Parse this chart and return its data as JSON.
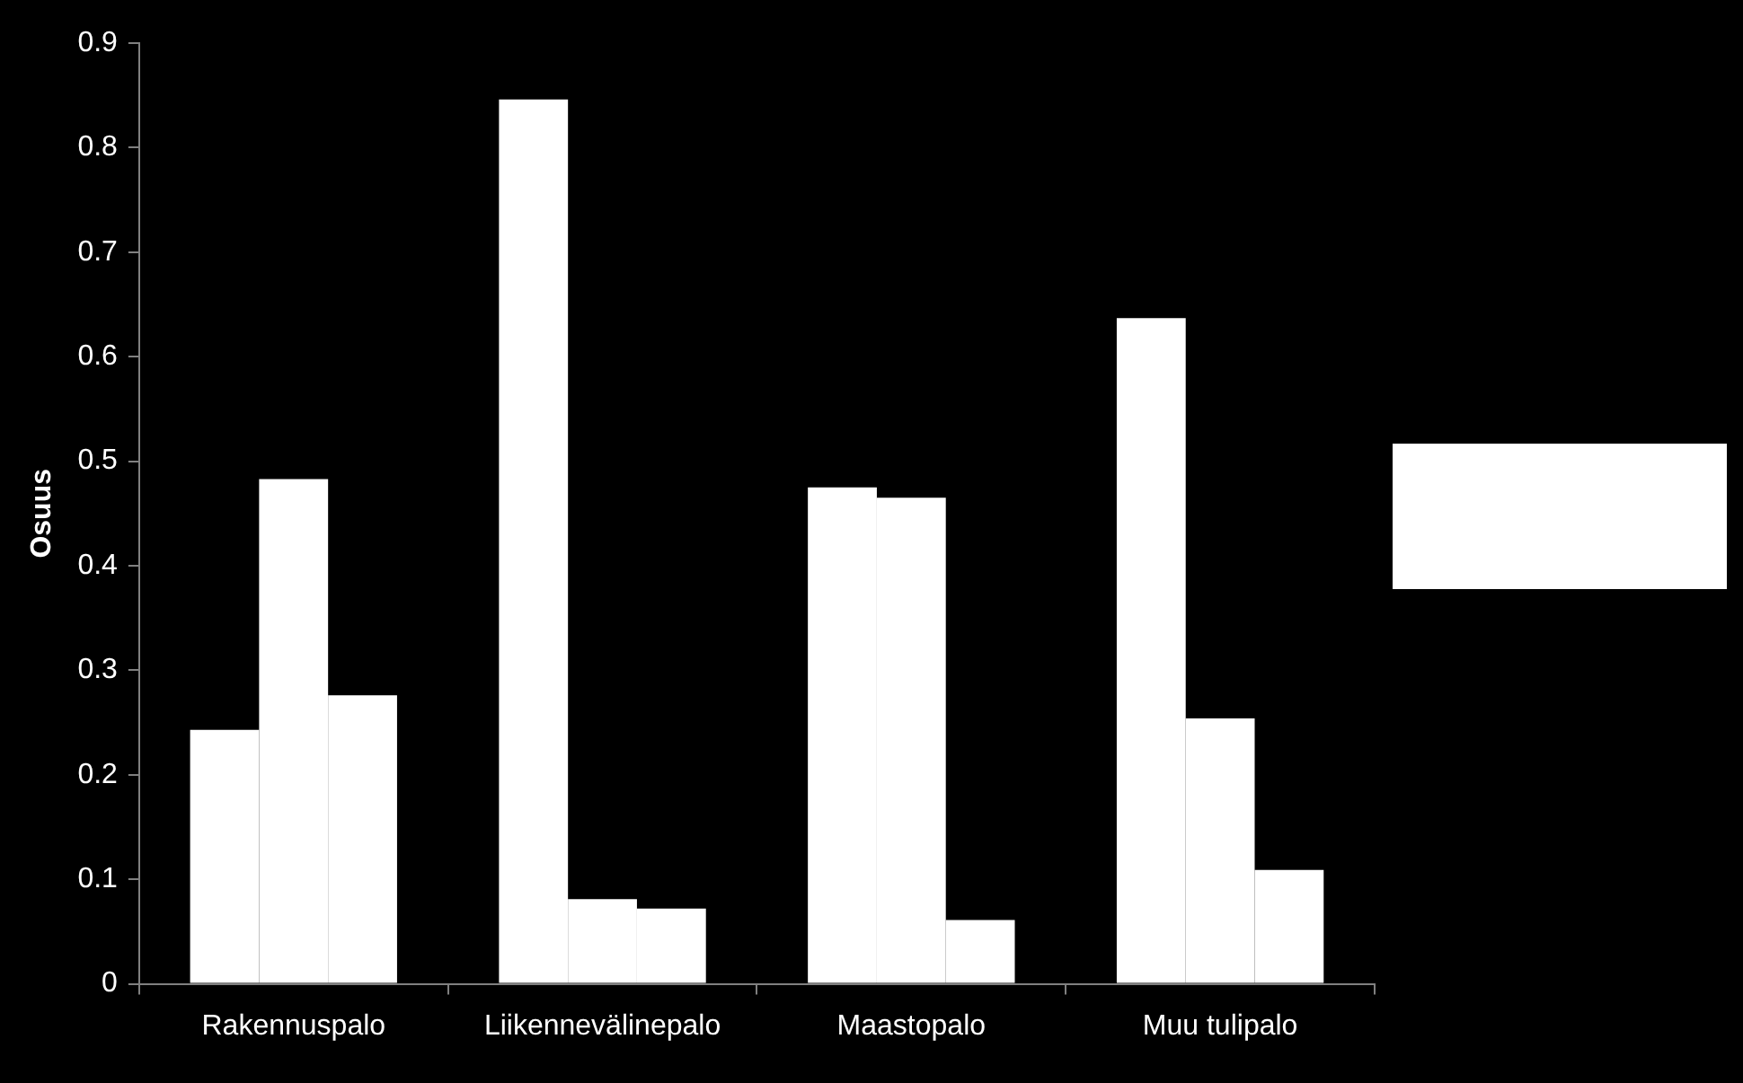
{
  "chart_data": {
    "type": "bar",
    "ylabel": "Osuus",
    "categories": [
      "Rakennuspalo",
      "Liikennevälinepalo",
      "Maastopalo",
      "Muu tulipalo"
    ],
    "series": [
      {
        "color": "#ffffff",
        "values": [
          0.243,
          0.846,
          0.475,
          0.637
        ]
      },
      {
        "color": "#ffffff",
        "values": [
          0.483,
          0.081,
          0.465,
          0.254
        ]
      },
      {
        "color": "#ffffff",
        "values": [
          0.276,
          0.072,
          0.061,
          0.109
        ]
      }
    ],
    "ylim": [
      0,
      0.9
    ],
    "yticks": [
      0,
      0.1,
      0.2,
      0.3,
      0.4,
      0.5,
      0.6,
      0.7,
      0.8,
      0.9
    ],
    "grid": false,
    "legend": false
  }
}
